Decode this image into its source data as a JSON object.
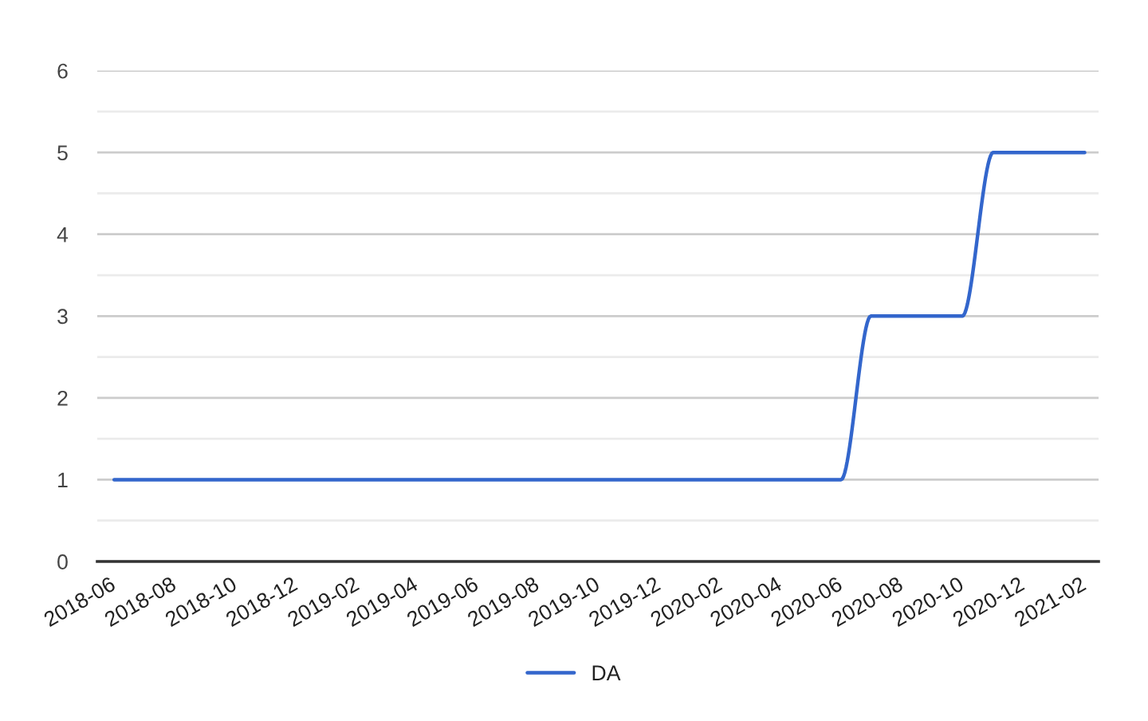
{
  "chart_data": {
    "type": "line",
    "x": [
      "2018-06",
      "2018-07",
      "2018-08",
      "2018-09",
      "2018-10",
      "2018-11",
      "2018-12",
      "2019-01",
      "2019-02",
      "2019-03",
      "2019-04",
      "2019-05",
      "2019-06",
      "2019-07",
      "2019-08",
      "2019-09",
      "2019-10",
      "2019-11",
      "2019-12",
      "2020-01",
      "2020-02",
      "2020-03",
      "2020-04",
      "2020-05",
      "2020-06",
      "2020-07",
      "2020-08",
      "2020-09",
      "2020-10",
      "2020-11",
      "2020-12",
      "2021-01",
      "2021-02"
    ],
    "series": [
      {
        "name": "DA",
        "color": "#3366cc",
        "values": [
          1,
          1,
          1,
          1,
          1,
          1,
          1,
          1,
          1,
          1,
          1,
          1,
          1,
          1,
          1,
          1,
          1,
          1,
          1,
          1,
          1,
          1,
          1,
          1,
          1,
          3,
          3,
          3,
          3,
          5,
          5,
          5,
          5
        ]
      }
    ],
    "xlim": [
      "2018-05-15",
      "2021-02-15"
    ],
    "xticks": [
      "2018-06",
      "2018-08",
      "2018-10",
      "2018-12",
      "2019-02",
      "2019-04",
      "2019-06",
      "2019-08",
      "2019-10",
      "2019-12",
      "2020-02",
      "2020-04",
      "2020-06",
      "2020-08",
      "2020-10",
      "2020-12",
      "2021-02"
    ],
    "ylim": [
      0,
      6
    ],
    "yticks": [
      0,
      1,
      2,
      3,
      4,
      5,
      6
    ],
    "grid": "y",
    "legend": "bottom",
    "line_style": "solid"
  }
}
